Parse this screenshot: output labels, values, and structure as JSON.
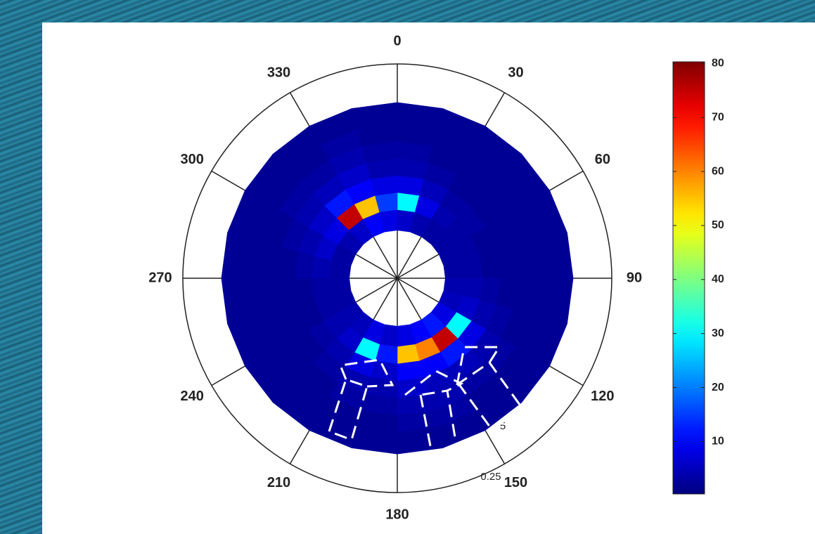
{
  "chart_data": {
    "type": "polar-heatmap",
    "theta_zero": "top",
    "theta_direction": "clockwise",
    "thetaticks": [
      0,
      30,
      60,
      90,
      120,
      150,
      180,
      210,
      240,
      270,
      300,
      330
    ],
    "rlim": [
      0,
      0.25
    ],
    "r_edges": [
      0.056,
      0.08,
      0.1,
      0.12,
      0.14,
      0.16,
      0.18,
      0.205
    ],
    "theta_edges": [
      0,
      15,
      30,
      45,
      60,
      75,
      90,
      105,
      120,
      135,
      150,
      165,
      180,
      195,
      210,
      225,
      240,
      255,
      270,
      285,
      300,
      315,
      330,
      345,
      360
    ],
    "values": [
      [
        6,
        4,
        3,
        3,
        3,
        3,
        4,
        5,
        8,
        12,
        10,
        8,
        6,
        8,
        5,
        4,
        3,
        3,
        3,
        3,
        4,
        6,
        10,
        8
      ],
      [
        30,
        8,
        4,
        3,
        3,
        3,
        4,
        6,
        30,
        75,
        60,
        55,
        12,
        30,
        6,
        4,
        3,
        3,
        4,
        6,
        8,
        75,
        55,
        15
      ],
      [
        8,
        5,
        3,
        3,
        2,
        2,
        3,
        4,
        8,
        12,
        10,
        10,
        6,
        8,
        4,
        3,
        2,
        2,
        3,
        4,
        6,
        12,
        10,
        8
      ],
      [
        4,
        3,
        2,
        2,
        2,
        2,
        2,
        3,
        4,
        5,
        5,
        6,
        4,
        4,
        3,
        2,
        2,
        2,
        2,
        3,
        4,
        5,
        6,
        4
      ],
      [
        3,
        2,
        2,
        2,
        2,
        2,
        2,
        2,
        3,
        3,
        4,
        4,
        3,
        3,
        2,
        2,
        2,
        2,
        2,
        2,
        3,
        3,
        4,
        3
      ],
      [
        2,
        2,
        2,
        2,
        2,
        2,
        2,
        2,
        2,
        2,
        3,
        3,
        2,
        2,
        2,
        2,
        2,
        2,
        2,
        2,
        2,
        2,
        3,
        2
      ],
      [
        2,
        2,
        2,
        2,
        2,
        2,
        2,
        2,
        2,
        2,
        2,
        2,
        2,
        2,
        2,
        2,
        2,
        2,
        2,
        2,
        2,
        2,
        2,
        2
      ]
    ],
    "colormap": "jet",
    "clim": [
      0.3,
      80.3
    ],
    "cticks": [
      10,
      20,
      30,
      40,
      50,
      60,
      70,
      80
    ],
    "annotations": [
      "5",
      "0.25"
    ]
  }
}
